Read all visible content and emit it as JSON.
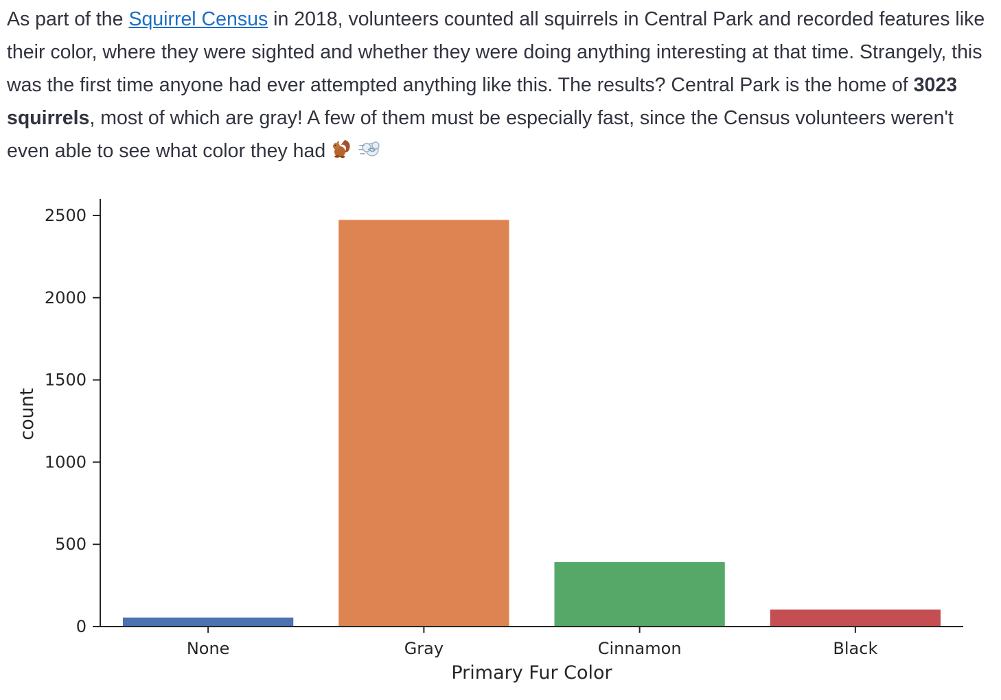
{
  "intro": {
    "before_link": "As part of the ",
    "link_text": "Squirrel Census",
    "after_link": " in 2018, volunteers counted all squirrels in Central Park and recorded features like their color, where they were sighted and whether they were doing anything interesting at that time. Strangely, this was the first time anyone had ever attempted anything like this. The results? Central Park is the home of ",
    "bold_text": "3023 squirrels",
    "after_bold": ", most of which are gray! A few of them must be especially fast, since the Census volunteers weren't even able to see what color they had ",
    "emoji_squirrel": "squirrel-emoji",
    "emoji_dash": "dash-emoji",
    "link_color": "#1c6fc4"
  },
  "chart_data": {
    "type": "bar",
    "categories": [
      "None",
      "Gray",
      "Cinnamon",
      "Black"
    ],
    "values": [
      55,
      2473,
      392,
      103
    ],
    "colors": [
      "#4c72b0",
      "#dd8452",
      "#55a868",
      "#c44e52"
    ],
    "xlabel": "Primary Fur Color",
    "ylabel": "count",
    "ylim": [
      0,
      2600
    ],
    "yticks": [
      0,
      500,
      1000,
      1500,
      2000,
      2500
    ],
    "ytick_labels": [
      "0",
      "500",
      "1000",
      "1500",
      "2000",
      "2500"
    ],
    "grid": false,
    "spines": "left-bottom"
  }
}
